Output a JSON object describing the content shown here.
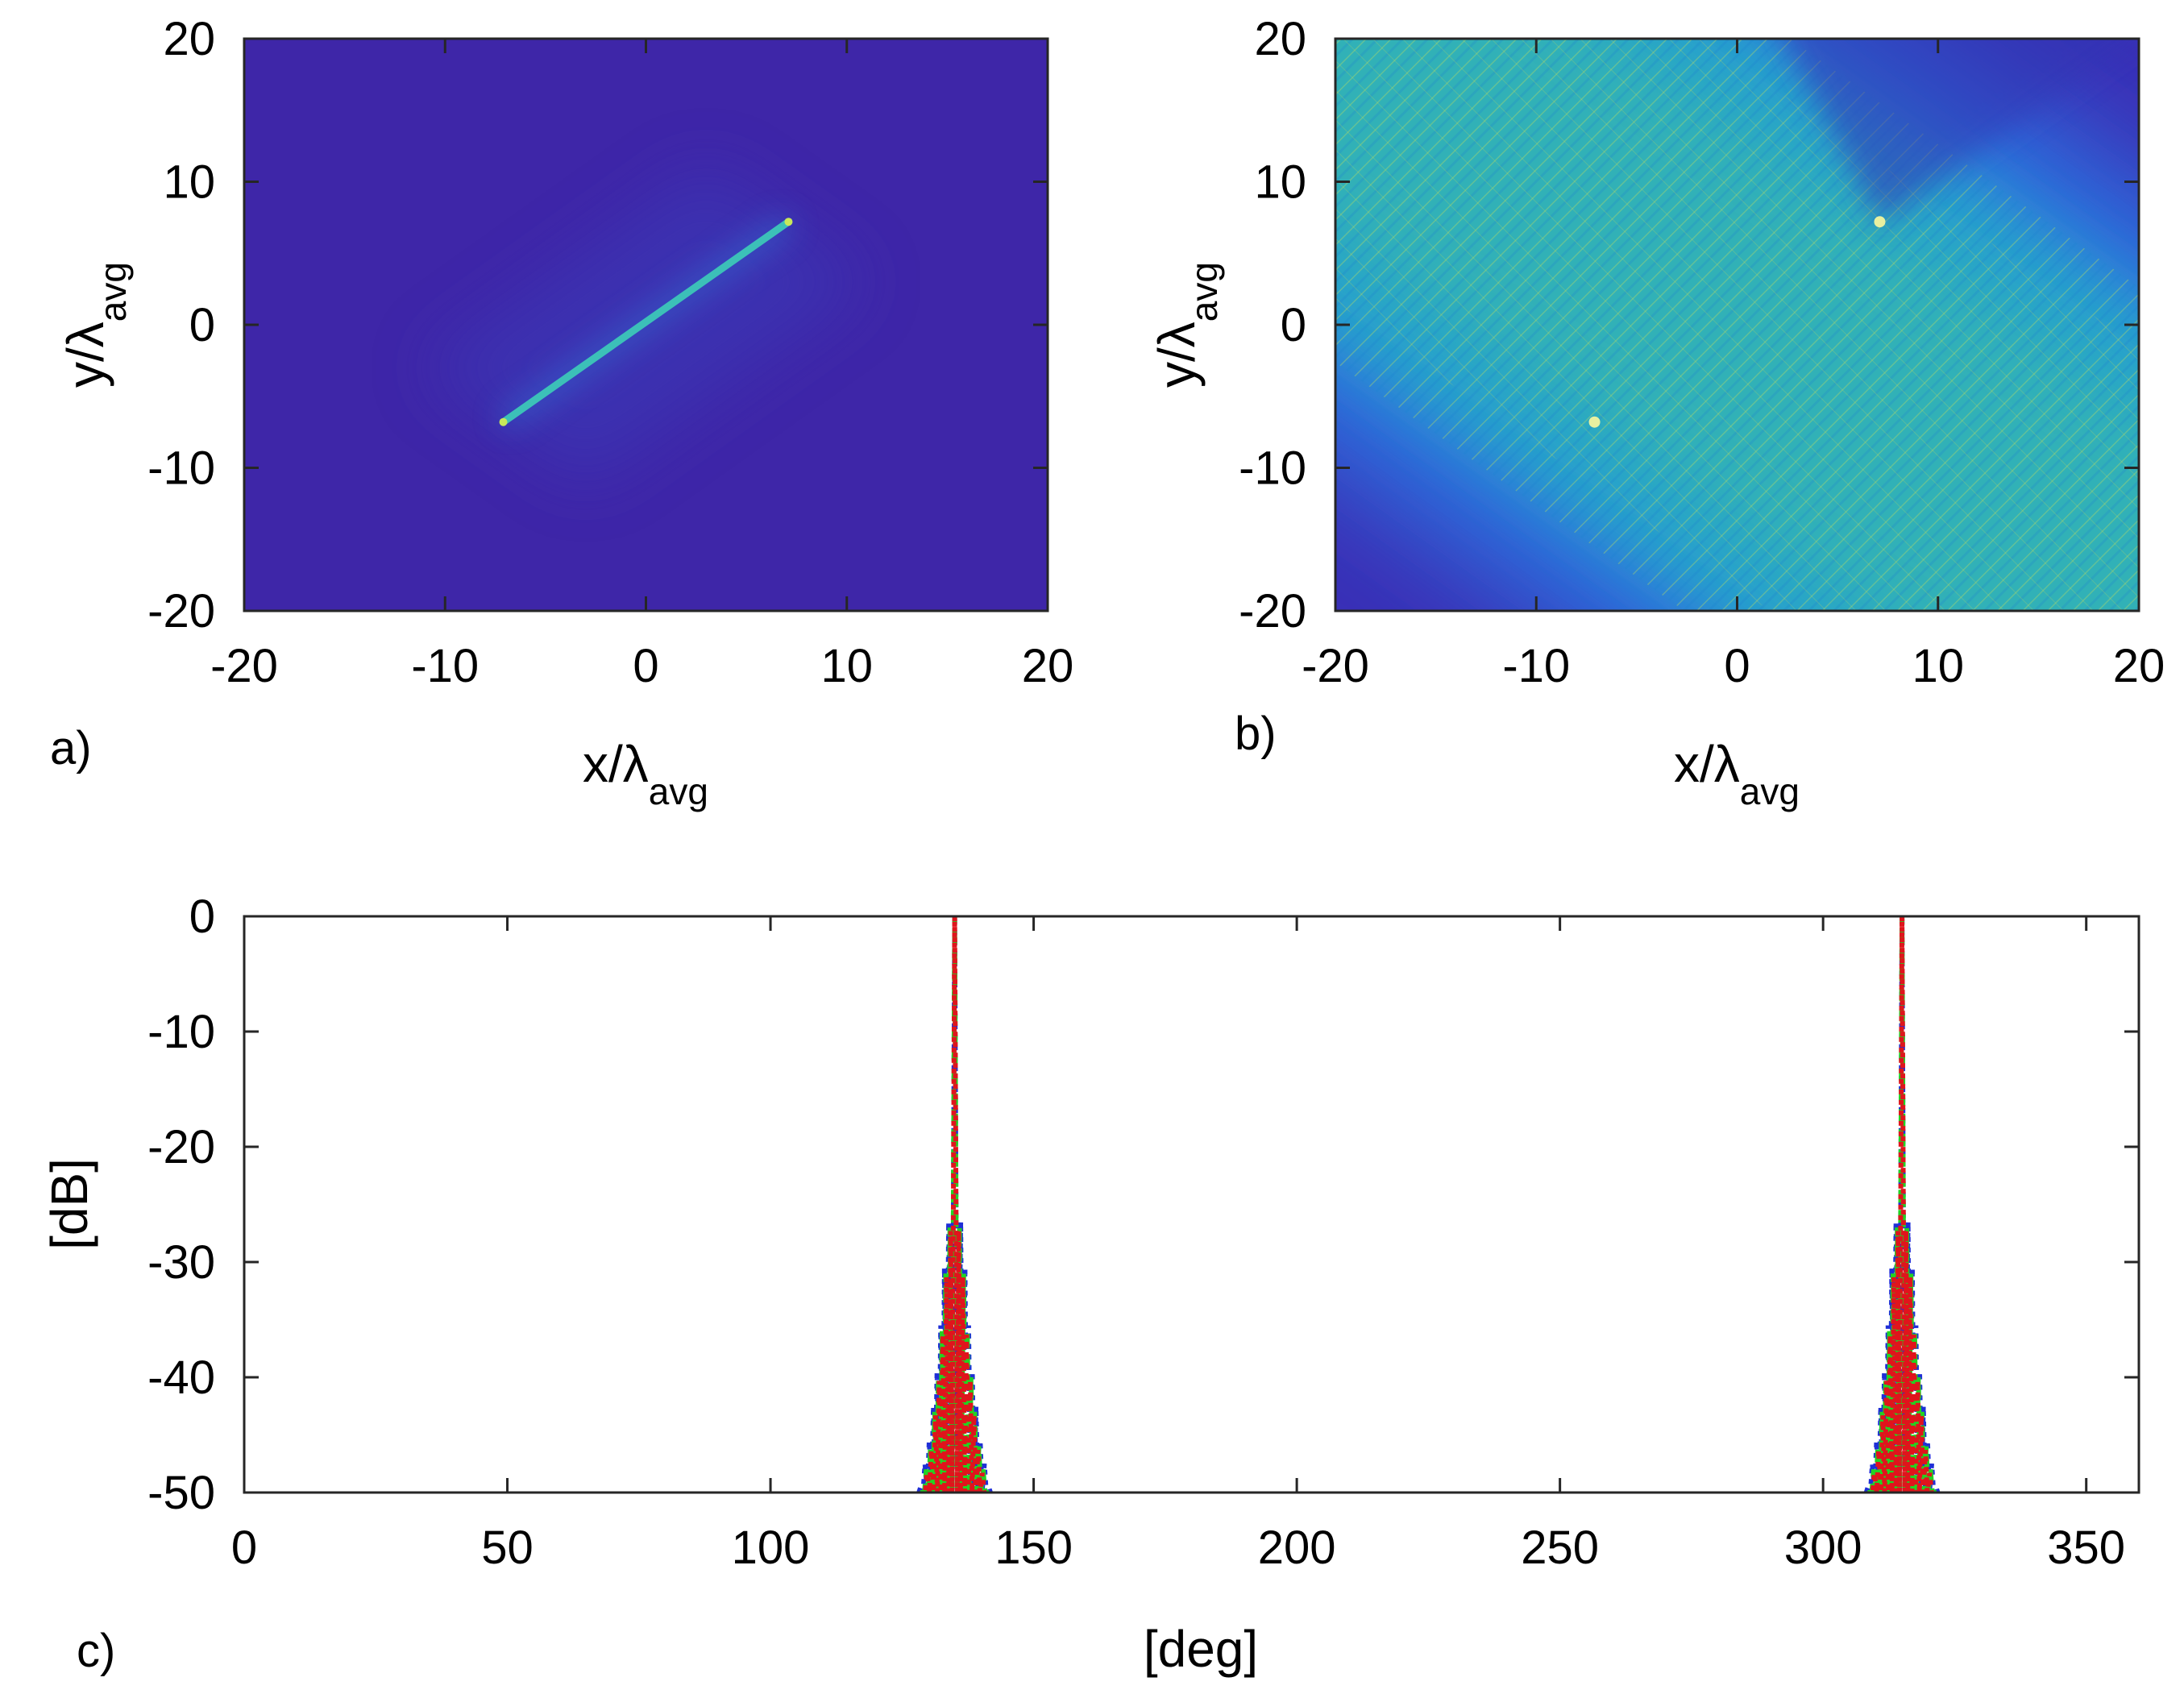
{
  "figure": {
    "panels": [
      "a)",
      "b)",
      "c)"
    ]
  },
  "chart_data": [
    {
      "panel": "a)",
      "type": "heatmap",
      "title": "",
      "xlabel": {
        "base": "x/λ",
        "sub": "avg"
      },
      "ylabel": {
        "base": "y/λ",
        "sub": "avg"
      },
      "xlim": [
        -20,
        20
      ],
      "ylim": [
        -20,
        20
      ],
      "xticks": [
        -20,
        -10,
        0,
        10,
        20
      ],
      "yticks": [
        20,
        10,
        0,
        -10,
        -20
      ],
      "colormap": [
        "#3e26a8",
        "#2a7be8",
        "#1fb8bd",
        "#80c85a",
        "#f5e12c"
      ],
      "background_level": 0.0,
      "features": [
        {
          "kind": "line-source",
          "from": [
            -7.1,
            -6.8
          ],
          "to": [
            7.1,
            7.2
          ],
          "level": 0.55
        }
      ]
    },
    {
      "panel": "b)",
      "type": "heatmap",
      "title": "",
      "xlabel": {
        "base": "x/λ",
        "sub": "avg"
      },
      "ylabel": {
        "base": "y/λ",
        "sub": "avg"
      },
      "xlim": [
        -20,
        20
      ],
      "ylim": [
        -20,
        20
      ],
      "xticks": [
        -20,
        -10,
        0,
        10,
        20
      ],
      "yticks": [
        20,
        10,
        0,
        -10,
        -20
      ],
      "colormap": [
        "#3e26a8",
        "#2a7be8",
        "#1fb8bd",
        "#80c85a",
        "#f5e12c"
      ],
      "features": [
        {
          "kind": "diagonal-band",
          "direction_deg": -45,
          "through": [
            0,
            0
          ],
          "half_width": 10,
          "level": 0.45
        },
        {
          "kind": "source-point",
          "at": [
            -7.1,
            -6.8
          ]
        },
        {
          "kind": "source-point",
          "at": [
            7.1,
            7.2
          ]
        }
      ]
    },
    {
      "panel": "c)",
      "type": "line",
      "title": "",
      "xlabel": "[deg]",
      "ylabel": "[dB]",
      "xlim": [
        0,
        360
      ],
      "ylim": [
        -50,
        0
      ],
      "xticks": [
        0,
        50,
        100,
        150,
        200,
        250,
        300,
        350
      ],
      "yticks": [
        0,
        -10,
        -20,
        -30,
        -40,
        -50
      ],
      "peaks_deg": [
        135,
        315
      ],
      "sidelobes": [
        {
          "offset_deg": 0.9,
          "db": -27
        },
        {
          "offset_deg": 1.7,
          "db": -31
        },
        {
          "offset_deg": 2.4,
          "db": -36
        },
        {
          "offset_deg": 3.1,
          "db": -40
        },
        {
          "offset_deg": 3.8,
          "db": -43
        },
        {
          "offset_deg": 4.6,
          "db": -46
        },
        {
          "offset_deg": 5.4,
          "db": -48
        },
        {
          "offset_deg": 6.2,
          "db": -50
        }
      ],
      "series": [
        {
          "name": "blue dotted",
          "color": "#1f2fd6",
          "style": "dotted"
        },
        {
          "name": "green dashed",
          "color": "#22d322",
          "style": "dashed"
        },
        {
          "name": "red dotted",
          "color": "#e0141c",
          "style": "dotted"
        }
      ]
    }
  ]
}
